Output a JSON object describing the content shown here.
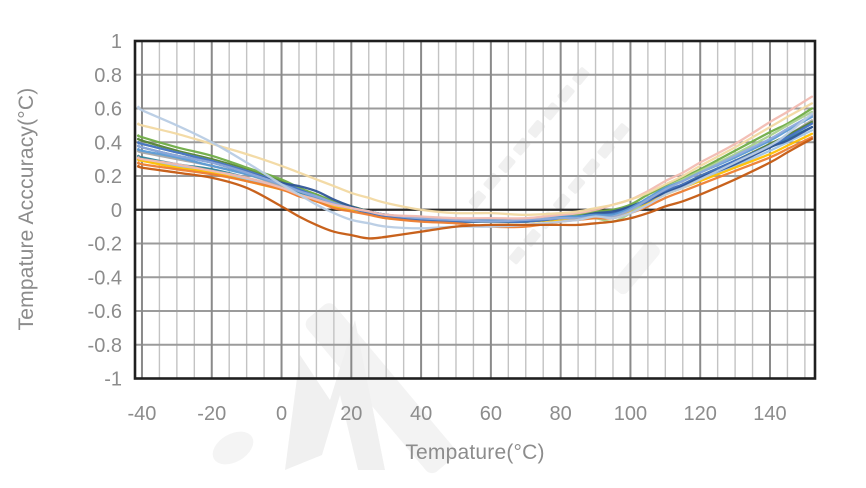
{
  "palette": {
    "background": "#ffffff",
    "axis_label": "#8c8c8c",
    "grid_minor": "#c3c3c3",
    "grid_major": "#8a8a8a",
    "grid_horizontal": "#9b9b9b",
    "zero_line": "#2b2b2b",
    "plot_border": "#1f1f1f",
    "watermark": "#f0f0f0"
  },
  "chart_data": {
    "type": "line",
    "xlabel": "Tempature(°C)",
    "ylabel": "Tempature Acccuracy(°C)",
    "xlim": [
      -42,
      152.9
    ],
    "ylim": [
      -1,
      1
    ],
    "grid": {
      "minor_x_step": 5,
      "major_x_step": 20,
      "y_step": 0.2,
      "grid_on": true
    },
    "legend_position": "none",
    "x_tick_values": [
      -40,
      -20,
      0,
      20,
      40,
      60,
      80,
      100,
      120,
      140
    ],
    "x_tick_labels": [
      "-40",
      "-20",
      "0",
      "20",
      "40",
      "60",
      "80",
      "100",
      "120",
      "140"
    ],
    "y_tick_values": [
      1,
      0.8,
      0.6,
      0.4,
      0.2,
      0,
      -0.2,
      -0.4,
      -0.6,
      -0.8,
      -1
    ],
    "y_tick_labels": [
      "1",
      "0.8",
      "0.6",
      "0.4",
      "0.2",
      "0",
      "-0.2",
      "-0.4",
      "-0.6",
      "-0.8",
      "-1"
    ],
    "x": [
      -41,
      -40,
      -30,
      -20,
      -10,
      0,
      5,
      10,
      15,
      20,
      25,
      30,
      40,
      50,
      60,
      70,
      80,
      85,
      90,
      95,
      100,
      105,
      110,
      115,
      120,
      130,
      140,
      145,
      152
    ],
    "series": [
      {
        "name": "gray",
        "color": "#a6a6a6",
        "values": [
          0.35,
          0.34,
          0.3,
          0.26,
          0.21,
          0.14,
          0.1,
          0.07,
          0.03,
          0.01,
          -0.01,
          -0.03,
          -0.05,
          -0.06,
          -0.07,
          -0.06,
          -0.05,
          -0.04,
          -0.02,
          -0.02,
          0.02,
          0.06,
          0.11,
          0.15,
          0.2,
          0.29,
          0.39,
          0.44,
          0.53
        ]
      },
      {
        "name": "teal",
        "color": "#31849b",
        "values": [
          0.32,
          0.31,
          0.27,
          0.24,
          0.19,
          0.13,
          0.1,
          0.06,
          0.03,
          0.0,
          -0.02,
          -0.04,
          -0.06,
          -0.07,
          -0.07,
          -0.07,
          -0.05,
          -0.04,
          -0.03,
          -0.03,
          0.0,
          0.05,
          0.1,
          0.14,
          0.19,
          0.28,
          0.37,
          0.42,
          0.49
        ]
      },
      {
        "name": "sky",
        "color": "#9dc3e6",
        "values": [
          0.3,
          0.29,
          0.26,
          0.22,
          0.18,
          0.13,
          0.09,
          0.06,
          0.02,
          0.0,
          -0.02,
          -0.04,
          -0.06,
          -0.07,
          -0.07,
          -0.07,
          -0.05,
          -0.05,
          -0.04,
          -0.04,
          -0.01,
          0.04,
          0.1,
          0.14,
          0.18,
          0.26,
          0.35,
          0.4,
          0.47
        ]
      },
      {
        "name": "gold",
        "color": "#ffc000",
        "values": [
          0.3,
          0.29,
          0.25,
          0.22,
          0.17,
          0.12,
          0.09,
          0.05,
          0.02,
          0.0,
          -0.02,
          -0.05,
          -0.06,
          -0.07,
          -0.07,
          -0.07,
          -0.06,
          -0.05,
          -0.04,
          -0.04,
          -0.01,
          0.04,
          0.09,
          0.13,
          0.17,
          0.25,
          0.33,
          0.38,
          0.45
        ]
      },
      {
        "name": "dark-green",
        "color": "#548235",
        "values": [
          0.42,
          0.41,
          0.35,
          0.3,
          0.24,
          0.17,
          0.12,
          0.09,
          0.04,
          0.02,
          -0.01,
          -0.04,
          -0.06,
          -0.07,
          -0.07,
          -0.07,
          -0.05,
          -0.04,
          -0.02,
          -0.02,
          0.02,
          0.06,
          0.11,
          0.15,
          0.2,
          0.29,
          0.39,
          0.44,
          0.52
        ]
      },
      {
        "name": "green",
        "color": "#70ad47",
        "values": [
          0.44,
          0.43,
          0.37,
          0.32,
          0.25,
          0.18,
          0.13,
          0.09,
          0.05,
          0.02,
          -0.01,
          -0.03,
          -0.05,
          -0.06,
          -0.07,
          -0.07,
          -0.04,
          -0.03,
          -0.01,
          0.0,
          0.03,
          0.09,
          0.14,
          0.19,
          0.24,
          0.35,
          0.46,
          0.51,
          0.6
        ]
      },
      {
        "name": "light-green",
        "color": "#a9d18e",
        "values": [
          0.4,
          0.39,
          0.34,
          0.29,
          0.23,
          0.16,
          0.12,
          0.08,
          0.04,
          0.01,
          -0.01,
          -0.03,
          -0.05,
          -0.06,
          -0.06,
          -0.06,
          -0.05,
          -0.05,
          -0.05,
          -0.07,
          -0.02,
          0.06,
          0.13,
          0.18,
          0.23,
          0.33,
          0.44,
          0.5,
          0.58
        ]
      },
      {
        "name": "blue",
        "color": "#4472c4",
        "values": [
          0.4,
          0.39,
          0.34,
          0.29,
          0.23,
          0.16,
          0.12,
          0.08,
          0.04,
          0.01,
          -0.02,
          -0.04,
          -0.06,
          -0.07,
          -0.07,
          -0.07,
          -0.05,
          -0.04,
          -0.03,
          -0.02,
          0.01,
          0.05,
          0.11,
          0.15,
          0.2,
          0.29,
          0.38,
          0.43,
          0.51
        ]
      },
      {
        "name": "navy",
        "color": "#2f5597",
        "values": [
          0.38,
          0.37,
          0.32,
          0.28,
          0.22,
          0.16,
          0.14,
          0.11,
          0.06,
          0.02,
          -0.01,
          -0.03,
          -0.05,
          -0.06,
          -0.06,
          -0.06,
          -0.04,
          -0.04,
          -0.02,
          -0.01,
          0.02,
          0.06,
          0.1,
          0.14,
          0.19,
          0.27,
          0.37,
          0.41,
          0.49
        ]
      },
      {
        "name": "steel",
        "color": "#5b9bd5",
        "values": [
          0.36,
          0.35,
          0.31,
          0.26,
          0.21,
          0.15,
          0.11,
          0.07,
          0.03,
          0.01,
          -0.01,
          -0.03,
          -0.05,
          -0.06,
          -0.06,
          -0.06,
          -0.04,
          -0.04,
          -0.03,
          -0.03,
          0.01,
          0.07,
          0.13,
          0.17,
          0.22,
          0.31,
          0.41,
          0.47,
          0.55
        ]
      },
      {
        "name": "lavender",
        "color": "#8eaadb",
        "values": [
          0.38,
          0.37,
          0.32,
          0.28,
          0.22,
          0.15,
          0.11,
          0.08,
          0.04,
          0.01,
          -0.01,
          -0.03,
          -0.05,
          -0.06,
          -0.07,
          -0.06,
          -0.05,
          -0.05,
          -0.04,
          -0.04,
          0.0,
          0.06,
          0.12,
          0.17,
          0.22,
          0.32,
          0.42,
          0.48,
          0.56
        ]
      },
      {
        "name": "orange",
        "color": "#ed7d31",
        "values": [
          0.28,
          0.27,
          0.24,
          0.21,
          0.17,
          0.12,
          0.08,
          0.05,
          0.01,
          -0.01,
          -0.03,
          -0.05,
          -0.07,
          -0.08,
          -0.1,
          -0.1,
          -0.07,
          -0.06,
          -0.05,
          -0.05,
          -0.02,
          0.02,
          0.07,
          0.11,
          0.15,
          0.23,
          0.31,
          0.36,
          0.43
        ]
      },
      {
        "name": "pink",
        "color": "#f2bcb2",
        "values": [
          0.31,
          0.3,
          0.27,
          0.23,
          0.19,
          0.13,
          0.09,
          0.06,
          0.03,
          0.01,
          -0.01,
          -0.03,
          -0.04,
          -0.05,
          -0.05,
          -0.05,
          -0.03,
          -0.02,
          0.0,
          0.03,
          0.06,
          0.11,
          0.17,
          0.22,
          0.28,
          0.39,
          0.52,
          0.58,
          0.67
        ]
      },
      {
        "name": "wheat",
        "color": "#f2d9a2",
        "values": [
          0.51,
          0.5,
          0.45,
          0.39,
          0.33,
          0.26,
          0.22,
          0.18,
          0.14,
          0.1,
          0.07,
          0.04,
          0.0,
          -0.02,
          -0.02,
          -0.03,
          -0.02,
          -0.01,
          0.01,
          0.03,
          0.06,
          0.1,
          0.15,
          0.2,
          0.26,
          0.37,
          0.49,
          0.55,
          0.63
        ]
      },
      {
        "name": "pale-blue",
        "color": "#b8cce4",
        "values": [
          0.61,
          0.59,
          0.5,
          0.4,
          0.28,
          0.15,
          0.09,
          0.03,
          -0.02,
          -0.06,
          -0.08,
          -0.1,
          -0.11,
          -0.1,
          -0.1,
          -0.09,
          -0.07,
          -0.06,
          -0.04,
          -0.05,
          -0.02,
          0.03,
          0.09,
          0.13,
          0.18,
          0.28,
          0.38,
          0.45,
          0.57
        ]
      },
      {
        "name": "dark-orange",
        "color": "#c55a11",
        "values": [
          0.26,
          0.25,
          0.22,
          0.19,
          0.13,
          0.02,
          -0.04,
          -0.09,
          -0.13,
          -0.15,
          -0.17,
          -0.16,
          -0.13,
          -0.1,
          -0.09,
          -0.09,
          -0.09,
          -0.09,
          -0.08,
          -0.07,
          -0.05,
          -0.02,
          0.02,
          0.05,
          0.09,
          0.18,
          0.28,
          0.34,
          0.42
        ]
      }
    ]
  }
}
